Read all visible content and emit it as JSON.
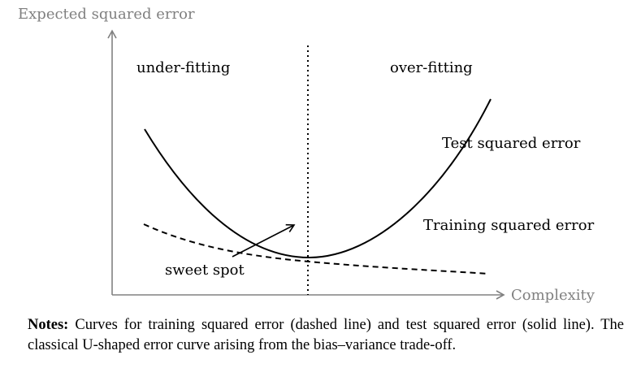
{
  "diagram": {
    "y_axis_label": "Expected squared error",
    "x_axis_label": "Complexity",
    "region_left_label": "under-fitting",
    "region_right_label": "over-fitting",
    "test_curve_label": "Test squared error",
    "training_curve_label": "Training squared error",
    "sweet_spot_label": "sweet spot",
    "axis_color": "#808080",
    "curve_color": "#000000"
  },
  "notes": {
    "prefix": "Notes:",
    "text": "Curves for training squared error (dashed line) and test squared error (solid line). The classical U-shaped error curve arising from the bias–variance trade-off."
  }
}
